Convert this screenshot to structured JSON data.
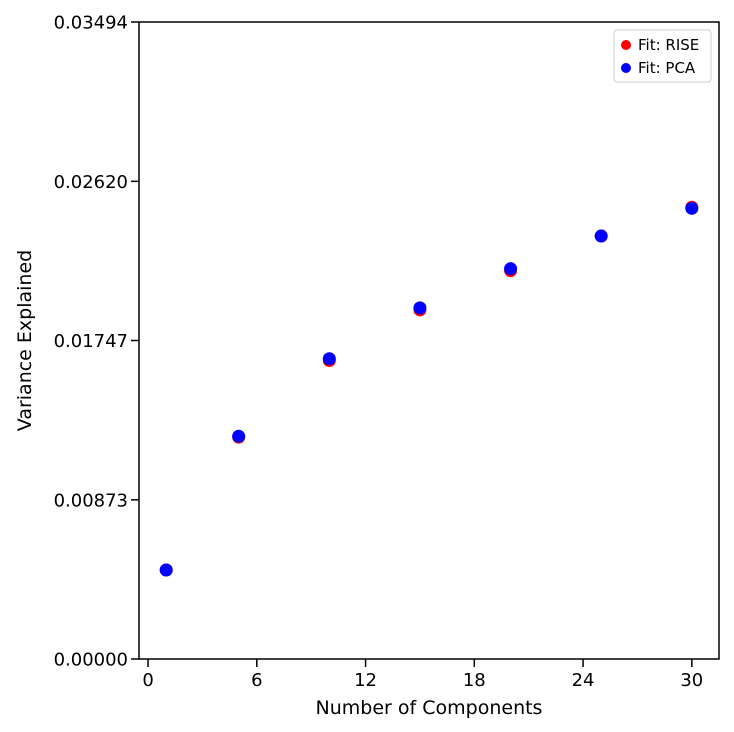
{
  "chart_data": {
    "type": "scatter",
    "title": "",
    "xlabel": "Number of Components",
    "ylabel": "Variance Explained",
    "xlim": [
      -0.5,
      31.5
    ],
    "ylim": [
      0,
      0.03494
    ],
    "xticks": [
      0,
      6,
      12,
      18,
      24,
      30
    ],
    "xtick_labels": [
      "0",
      "6",
      "12",
      "18",
      "24",
      "30"
    ],
    "yticks": [
      0,
      0.00873,
      0.01747,
      0.0262,
      0.03494
    ],
    "ytick_labels": [
      "0.00000",
      "0.00873",
      "0.01747",
      "0.02620",
      "0.03494"
    ],
    "grid": false,
    "legend_position": "top-right",
    "series": [
      {
        "name": "Fit: RISE",
        "color": "#ff0000",
        "x": [
          1,
          5,
          10,
          15,
          20,
          25,
          30
        ],
        "y": [
          0.00488,
          0.01217,
          0.01637,
          0.01915,
          0.0213,
          0.0232,
          0.02478
        ]
      },
      {
        "name": "Fit: PCA",
        "color": "#0000ff",
        "x": [
          1,
          5,
          10,
          15,
          20,
          25,
          30
        ],
        "y": [
          0.00488,
          0.01222,
          0.01647,
          0.01926,
          0.02141,
          0.0232,
          0.02472
        ]
      }
    ]
  }
}
